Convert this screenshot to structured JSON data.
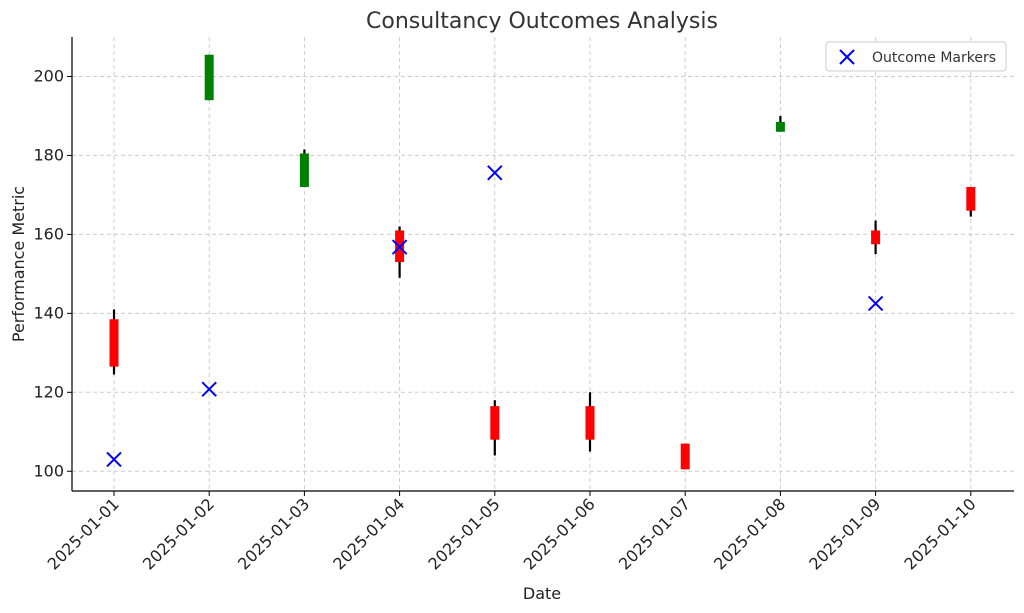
{
  "chart_data": {
    "type": "candlestick",
    "title": "Consultancy Outcomes Analysis",
    "xlabel": "Date",
    "ylabel": "Performance Metric",
    "ylim": [
      95,
      210
    ],
    "y_ticks": [
      100,
      120,
      140,
      160,
      180,
      200
    ],
    "grid": true,
    "legend_position": "top-right",
    "colors": {
      "up": "#008000",
      "down": "#ff0000",
      "wick": "#000000",
      "marker": "#0000ff"
    },
    "categories": [
      "2025-01-01",
      "2025-01-02",
      "2025-01-03",
      "2025-01-04",
      "2025-01-05",
      "2025-01-06",
      "2025-01-07",
      "2025-01-08",
      "2025-01-09",
      "2025-01-10"
    ],
    "candles": [
      {
        "date": "2025-01-01",
        "open": 138.5,
        "high": 141,
        "low": 124.5,
        "close": 126.5
      },
      {
        "date": "2025-01-02",
        "open": 194.0,
        "high": 205.5,
        "low": 194.0,
        "close": 205.5
      },
      {
        "date": "2025-01-03",
        "open": 172.0,
        "high": 181.5,
        "low": 172.0,
        "close": 180.5
      },
      {
        "date": "2025-01-04",
        "open": 161.0,
        "high": 162.0,
        "low": 149.0,
        "close": 153.0
      },
      {
        "date": "2025-01-05",
        "open": 116.5,
        "high": 118.0,
        "low": 104.0,
        "close": 108.0
      },
      {
        "date": "2025-01-06",
        "open": 116.5,
        "high": 120.0,
        "low": 105.0,
        "close": 108.0
      },
      {
        "date": "2025-01-07",
        "open": 107.0,
        "high": 107.0,
        "low": 100.5,
        "close": 100.5
      },
      {
        "date": "2025-01-08",
        "open": 186.0,
        "high": 190.0,
        "low": 186.0,
        "close": 188.5
      },
      {
        "date": "2025-01-09",
        "open": 161.0,
        "high": 163.5,
        "low": 155.0,
        "close": 157.5
      },
      {
        "date": "2025-01-10",
        "open": 172.0,
        "high": 172.0,
        "low": 164.5,
        "close": 166.0
      }
    ],
    "series": [
      {
        "name": "Outcome Markers",
        "marker": "x",
        "x": [
          "2025-01-01",
          "2025-01-02",
          "2025-01-04",
          "2025-01-05",
          "2025-01-09"
        ],
        "values": [
          103,
          120.8,
          156.8,
          175.6,
          142.5
        ]
      }
    ]
  }
}
